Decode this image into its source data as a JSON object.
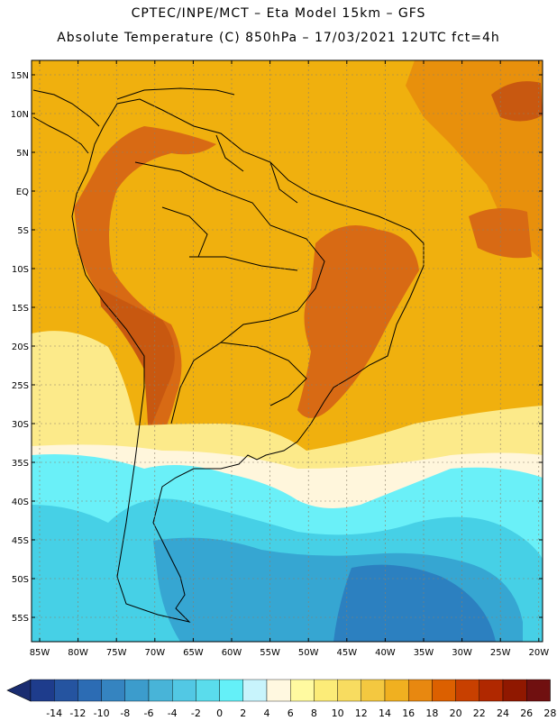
{
  "header": {
    "title_line1": "CPTEC/INPE/MCT –  Eta Model 15km – GFS",
    "title_line2": "Absolute Temperature (C) 850hPa – 17/03/2021 12UTC fct=4h"
  },
  "axes": {
    "lat_labels": [
      "15N",
      "10N",
      "5N",
      "EQ",
      "5S",
      "10S",
      "15S",
      "20S",
      "25S",
      "30S",
      "35S",
      "40S",
      "45S",
      "50S",
      "55S"
    ],
    "lon_labels": [
      "85W",
      "80W",
      "75W",
      "70W",
      "65W",
      "60W",
      "55W",
      "50W",
      "45W",
      "40W",
      "35W",
      "30W",
      "25W",
      "20W"
    ]
  },
  "colorbar": {
    "labels": [
      "-14",
      "-12",
      "-10",
      "-8",
      "-6",
      "-4",
      "-2",
      "0",
      "2",
      "4",
      "6",
      "8",
      "10",
      "12",
      "14",
      "16",
      "18",
      "20",
      "22",
      "24",
      "26",
      "28"
    ],
    "colors": [
      "#1e3c8c",
      "#2554a0",
      "#2c6cb4",
      "#3584c0",
      "#3c9ccc",
      "#48b4d8",
      "#52c8e4",
      "#5adcec",
      "#64f0f8",
      "#c8f4fc",
      "#fff8e0",
      "#fffaa0",
      "#fcec78",
      "#f8dc60",
      "#f4c840",
      "#f0b020",
      "#e88810",
      "#dc6000",
      "#c84000",
      "#b02800",
      "#901800",
      "#701010"
    ],
    "end_left": "#1a2c70",
    "end_right": "#600818"
  },
  "map_colors": {
    "ocean_background": "#f0b00e",
    "warm_ne": "#e8900c",
    "hot": "#d86a14",
    "very_hot": "#c85810",
    "yellow_band": "#fcea8a",
    "cream": "#fff6dc",
    "cyan": "#6af0f8",
    "light_blue": "#46d0e6",
    "mid_blue": "#36a6d2",
    "deep_blue": "#2c80c0"
  }
}
